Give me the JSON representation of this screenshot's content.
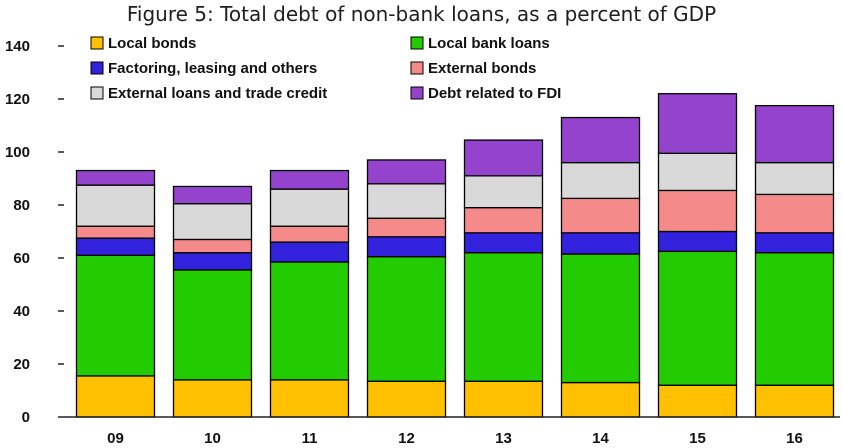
{
  "chart_data": {
    "type": "bar",
    "stacked": true,
    "title": "Figure 5: Total debt of non-bank loans, as a percent of GDP",
    "categories": [
      "09",
      "10",
      "11",
      "12",
      "13",
      "14",
      "15",
      "16"
    ],
    "ylim": [
      0,
      140
    ],
    "yticks": [
      0,
      20,
      40,
      60,
      80,
      100,
      120,
      140
    ],
    "legend_position": "top",
    "series": [
      {
        "name": "Local bonds",
        "color": "#FFC000",
        "values": [
          15.5,
          14,
          14,
          13.5,
          13.5,
          13,
          12,
          12
        ]
      },
      {
        "name": "Local bank loans",
        "color": "#22CC00",
        "values": [
          45.5,
          41.5,
          44.5,
          47,
          48.5,
          48.5,
          50.5,
          50
        ]
      },
      {
        "name": "Factoring, leasing and others",
        "color": "#3322DD",
        "values": [
          6.5,
          6.5,
          7.5,
          7.5,
          7.5,
          8,
          7.5,
          7.5
        ]
      },
      {
        "name": "External bonds",
        "color": "#F58A8A",
        "values": [
          4.5,
          5,
          6,
          7,
          9.5,
          13,
          15.5,
          14.5
        ]
      },
      {
        "name": "External loans and trade credit",
        "color": "#D9D9D9",
        "values": [
          15.5,
          13.5,
          14,
          13,
          12,
          13.5,
          14,
          12
        ]
      },
      {
        "name": "Debt related to FDI",
        "color": "#9444CC",
        "values": [
          5.5,
          6.5,
          7,
          9,
          13.5,
          17,
          22.5,
          21.5
        ]
      }
    ]
  }
}
